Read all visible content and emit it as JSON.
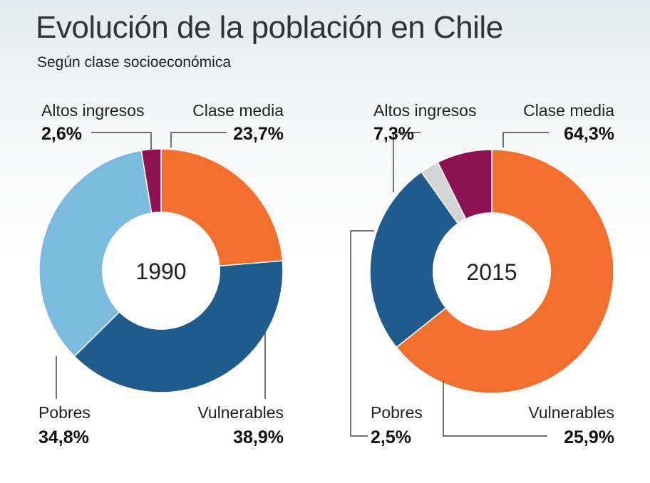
{
  "header": {
    "title": "Evolución de la población en Chile",
    "subtitle": "Según clase socioeconómica"
  },
  "colors": {
    "altos_ingresos": "#8e1154",
    "clase_media": "#f26f2d",
    "vulnerables": "#1f5c8d",
    "pobres_1990": "#7bbbe0",
    "pobres_2015": "#d2d4d6"
  },
  "chart_data": [
    {
      "type": "pie",
      "center_label": "1990",
      "categories": [
        "Clase media",
        "Vulnerables",
        "Pobres",
        "Altos ingresos"
      ],
      "values": [
        23.7,
        38.9,
        34.8,
        2.6
      ],
      "value_labels": [
        "23,7%",
        "38,9%",
        "34,8%",
        "2,6%"
      ],
      "colors": [
        "#f26f2d",
        "#1f5c8d",
        "#7bbbe0",
        "#8e1154"
      ]
    },
    {
      "type": "pie",
      "center_label": "2015",
      "categories": [
        "Clase media",
        "Vulnerables",
        "Pobres",
        "Altos ingresos"
      ],
      "values": [
        64.3,
        25.9,
        2.5,
        7.3
      ],
      "value_labels": [
        "64,3%",
        "25,9%",
        "2,5%",
        "7,3%"
      ],
      "colors": [
        "#f26f2d",
        "#1f5c8d",
        "#d2d4d6",
        "#8e1154"
      ]
    }
  ]
}
